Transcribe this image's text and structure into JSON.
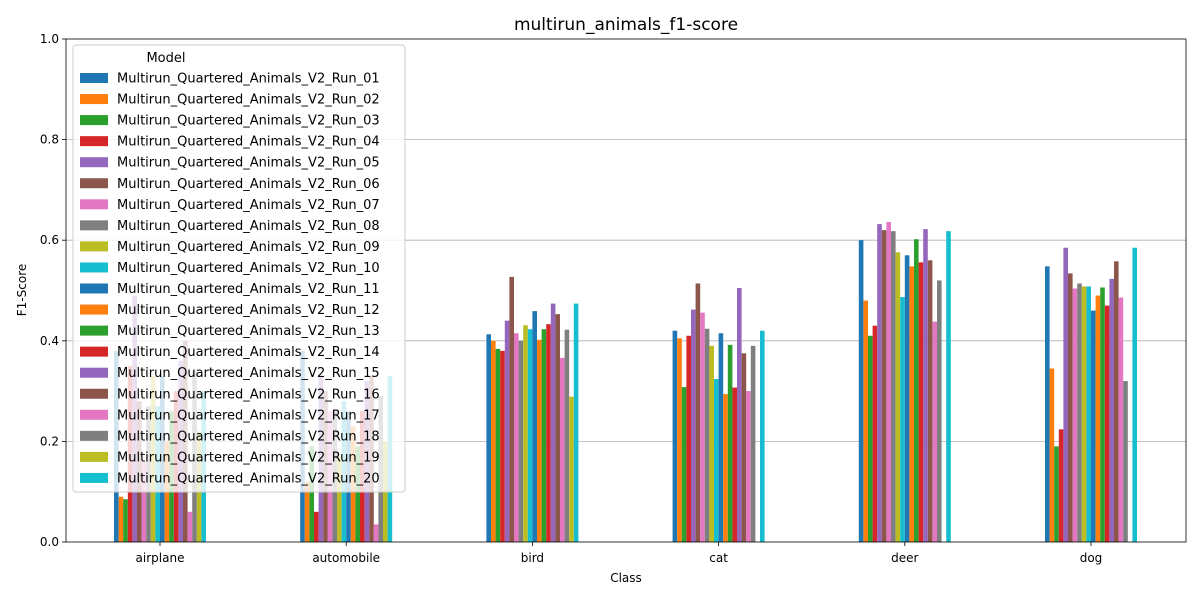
{
  "chart_data": {
    "type": "bar",
    "title": "multirun_animals_f1-score",
    "xlabel": "Class",
    "ylabel": "F1-Score",
    "ylim": [
      0,
      1.0
    ],
    "yticks": [
      "0.0",
      "0.2",
      "0.4",
      "0.6",
      "0.8",
      "1.0"
    ],
    "grid": "y",
    "legend": {
      "title": "Model",
      "placement": "top-left"
    },
    "categories": [
      "airplane",
      "automobile",
      "bird",
      "cat",
      "deer",
      "dog"
    ],
    "series": [
      {
        "name": "Multirun_Quartered_Animals_V2_Run_01",
        "color": "#1f77b4",
        "values": [
          0.38,
          0.38,
          0.413,
          0.42,
          0.6,
          0.548
        ]
      },
      {
        "name": "Multirun_Quartered_Animals_V2_Run_02",
        "color": "#ff7f0e",
        "values": [
          0.09,
          0.12,
          0.4,
          0.405,
          0.48,
          0.345
        ]
      },
      {
        "name": "Multirun_Quartered_Animals_V2_Run_03",
        "color": "#2ca02c",
        "values": [
          0.085,
          0.19,
          0.384,
          0.308,
          0.41,
          0.19
        ]
      },
      {
        "name": "Multirun_Quartered_Animals_V2_Run_04",
        "color": "#d62728",
        "values": [
          0.35,
          0.06,
          0.38,
          0.41,
          0.43,
          0.224
        ]
      },
      {
        "name": "Multirun_Quartered_Animals_V2_Run_05",
        "color": "#9467bd",
        "values": [
          0.49,
          0.33,
          0.44,
          0.462,
          0.632,
          0.585
        ]
      },
      {
        "name": "Multirun_Quartered_Animals_V2_Run_06",
        "color": "#8c564b",
        "values": [
          0.28,
          0.3,
          0.527,
          0.514,
          0.62,
          0.534
        ]
      },
      {
        "name": "Multirun_Quartered_Animals_V2_Run_07",
        "color": "#e377c2",
        "values": [
          0.16,
          0.26,
          0.415,
          0.456,
          0.636,
          0.504
        ]
      },
      {
        "name": "Multirun_Quartered_Animals_V2_Run_08",
        "color": "#7f7f7f",
        "values": [
          0.27,
          0.26,
          0.4,
          0.424,
          0.618,
          0.514
        ]
      },
      {
        "name": "Multirun_Quartered_Animals_V2_Run_09",
        "color": "#bcbd22",
        "values": [
          0.33,
          0.17,
          0.431,
          0.39,
          0.576,
          0.508
        ]
      },
      {
        "name": "Multirun_Quartered_Animals_V2_Run_10",
        "color": "#17becf",
        "values": [
          0.27,
          0.28,
          0.423,
          0.324,
          0.487,
          0.508
        ]
      },
      {
        "name": "Multirun_Quartered_Animals_V2_Run_11",
        "color": "#1f77b4",
        "values": [
          0.33,
          0.26,
          0.459,
          0.415,
          0.57,
          0.46
        ]
      },
      {
        "name": "Multirun_Quartered_Animals_V2_Run_12",
        "color": "#ff7f0e",
        "values": [
          0.2,
          0.23,
          0.402,
          0.294,
          0.548,
          0.49
        ]
      },
      {
        "name": "Multirun_Quartered_Animals_V2_Run_13",
        "color": "#2ca02c",
        "values": [
          0.26,
          0.19,
          0.423,
          0.392,
          0.602,
          0.506
        ]
      },
      {
        "name": "Multirun_Quartered_Animals_V2_Run_14",
        "color": "#d62728",
        "values": [
          0.3,
          0.26,
          0.433,
          0.307,
          0.556,
          0.47
        ]
      },
      {
        "name": "Multirun_Quartered_Animals_V2_Run_15",
        "color": "#9467bd",
        "values": [
          0.36,
          0.32,
          0.474,
          0.505,
          0.622,
          0.523
        ]
      },
      {
        "name": "Multirun_Quartered_Animals_V2_Run_16",
        "color": "#8c564b",
        "values": [
          0.4,
          0.33,
          0.453,
          0.375,
          0.56,
          0.558
        ]
      },
      {
        "name": "Multirun_Quartered_Animals_V2_Run_17",
        "color": "#e377c2",
        "values": [
          0.06,
          0.035,
          0.366,
          0.3,
          0.438,
          0.486
        ]
      },
      {
        "name": "Multirun_Quartered_Animals_V2_Run_18",
        "color": "#7f7f7f",
        "values": [
          0.34,
          0.29,
          0.422,
          0.39,
          0.52,
          0.32
        ]
      },
      {
        "name": "Multirun_Quartered_Animals_V2_Run_19",
        "color": "#bcbd22",
        "values": [
          0.22,
          0.2,
          0.289,
          0.0,
          0.0,
          0.0
        ]
      },
      {
        "name": "Multirun_Quartered_Animals_V2_Run_20",
        "color": "#17becf",
        "values": [
          0.3,
          0.33,
          0.474,
          0.42,
          0.618,
          0.585
        ]
      }
    ]
  }
}
